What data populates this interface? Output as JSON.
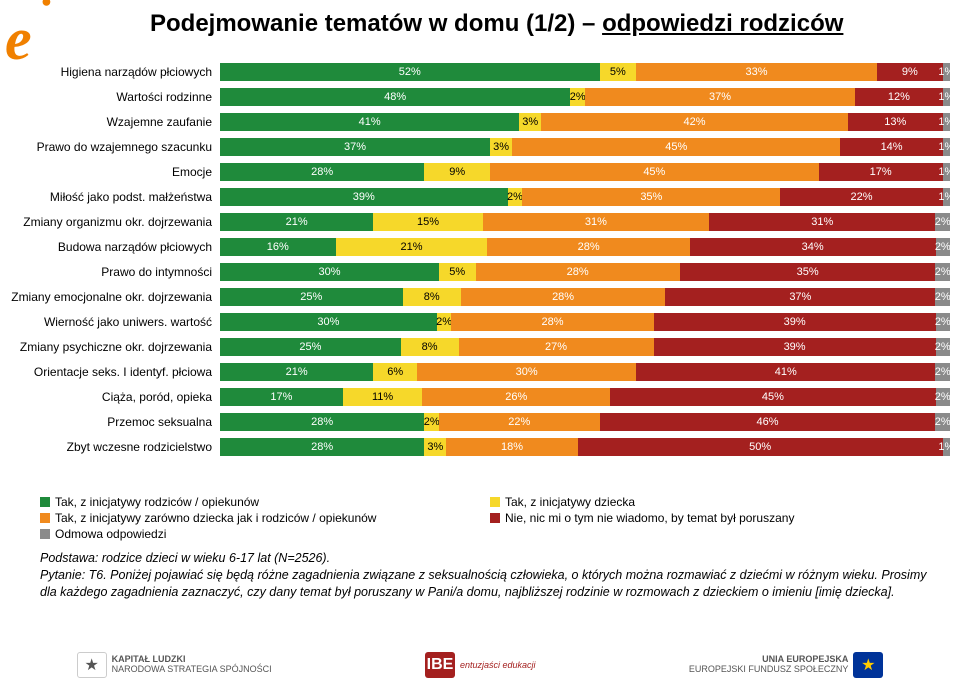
{
  "title_pre": "Podejmowanie tematów w domu (1/2) – ",
  "title_u": "odpowiedzi rodziców",
  "colors": {
    "c1": "#1f8a3b",
    "c2": "#f6d82a",
    "c3": "#f08a1e",
    "c4": "#a4201f",
    "c5": "#8a8a8a"
  },
  "rows": [
    {
      "label": "Higiena narządów płciowych",
      "v": [
        52,
        5,
        33,
        9,
        1
      ]
    },
    {
      "label": "Wartości rodzinne",
      "v": [
        48,
        2,
        37,
        12,
        1
      ]
    },
    {
      "label": "Wzajemne zaufanie",
      "v": [
        41,
        3,
        42,
        13,
        1
      ]
    },
    {
      "label": "Prawo do wzajemnego szacunku",
      "v": [
        37,
        3,
        45,
        14,
        1
      ]
    },
    {
      "label": "Emocje",
      "v": [
        28,
        9,
        45,
        17,
        1
      ]
    },
    {
      "label": "Miłość jako podst. małżeństwa",
      "v": [
        39,
        2,
        35,
        22,
        1
      ]
    },
    {
      "label": "Zmiany organizmu okr. dojrzewania",
      "v": [
        21,
        15,
        31,
        31,
        2
      ]
    },
    {
      "label": "Budowa narządów płciowych",
      "v": [
        16,
        21,
        28,
        34,
        2
      ]
    },
    {
      "label": "Prawo do intymności",
      "v": [
        30,
        5,
        28,
        35,
        2
      ]
    },
    {
      "label": "Zmiany emocjonalne okr. dojrzewania",
      "v": [
        25,
        8,
        28,
        37,
        2
      ]
    },
    {
      "label": "Wierność jako uniwers. wartość",
      "v": [
        30,
        2,
        28,
        39,
        2
      ]
    },
    {
      "label": "Zmiany psychiczne okr. dojrzewania",
      "v": [
        25,
        8,
        27,
        39,
        2
      ]
    },
    {
      "label": "Orientacje seks. I identyf. płciowa",
      "v": [
        21,
        6,
        30,
        41,
        2
      ]
    },
    {
      "label": "Ciąża, poród, opieka",
      "v": [
        17,
        11,
        26,
        45,
        2
      ]
    },
    {
      "label": "Przemoc seksualna",
      "v": [
        28,
        2,
        22,
        46,
        2
      ]
    },
    {
      "label": "Zbyt wczesne rodzicielstwo",
      "v": [
        28,
        3,
        18,
        50,
        1
      ]
    }
  ],
  "legend": [
    {
      "c": "c1",
      "t": "Tak, z inicjatywy rodziców / opiekunów"
    },
    {
      "c": "c2",
      "t": "Tak, z inicjatywy dziecka"
    },
    {
      "c": "c3",
      "t": "Tak, z inicjatywy zarówno dziecka jak i rodziców / opiekunów"
    },
    {
      "c": "c4",
      "t": "Nie, nic mi o tym nie wiadomo, by temat był poruszany"
    },
    {
      "c": "c5",
      "t": "Odmowa odpowiedzi"
    }
  ],
  "notes_line1": "Podstawa: rodzice dzieci w wieku 6-17 lat (N=2526).",
  "notes_line2": "Pytanie: T6. Poniżej pojawiać się będą różne zagadnienia związane z seksualnością człowieka, o których można rozmawiać z dziećmi w różnym wieku. Prosimy dla każdego zagadnienia zaznaczyć, czy dany temat był poruszany w Pani/a domu, najbliższej rodzinie w rozmowach z dzieckiem o imieniu [imię dziecka].",
  "footer": {
    "l1": "KAPITAŁ LUDZKI",
    "l1b": "NARODOWA STRATEGIA SPÓJNOŚCI",
    "l2a": "IBE",
    "l2b": "entuzjaści edukacji",
    "l3": "UNIA EUROPEJSKA",
    "l3b": "EUROPEJSKI FUNDUSZ SPOŁECZNY"
  }
}
